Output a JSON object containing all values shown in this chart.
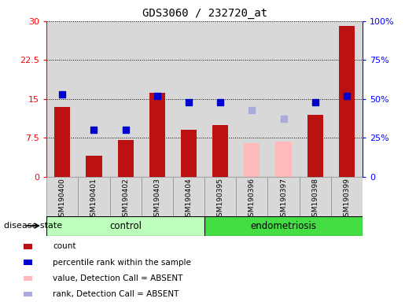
{
  "title": "GDS3060 / 232720_at",
  "samples": [
    "GSM190400",
    "GSM190401",
    "GSM190402",
    "GSM190403",
    "GSM190404",
    "GSM190395",
    "GSM190396",
    "GSM190397",
    "GSM190398",
    "GSM190399"
  ],
  "count_values": [
    13.5,
    4.0,
    7.0,
    16.2,
    9.0,
    10.0,
    null,
    null,
    12.0,
    29.0
  ],
  "count_absent": [
    null,
    null,
    null,
    null,
    null,
    null,
    6.5,
    6.8,
    null,
    null
  ],
  "rank_values": [
    53,
    30,
    30,
    52,
    48,
    48,
    null,
    null,
    48,
    52
  ],
  "rank_absent": [
    null,
    null,
    null,
    null,
    null,
    null,
    43,
    37,
    null,
    null
  ],
  "ylim_left": [
    0,
    30
  ],
  "ylim_right": [
    0,
    100
  ],
  "yticks_left": [
    0,
    7.5,
    15.0,
    22.5,
    30
  ],
  "yticks_right": [
    0,
    25,
    50,
    75,
    100
  ],
  "ytick_labels_left": [
    "0",
    "7.5",
    "15",
    "22.5",
    "30"
  ],
  "ytick_labels_right": [
    "0",
    "25%",
    "50%",
    "75%",
    "100%"
  ],
  "bar_color_present": "#bb1111",
  "bar_color_absent": "#ffbbbb",
  "dot_color_present": "#0000cc",
  "dot_color_absent": "#aaaadd",
  "col_bg_color": "#d8d8d8",
  "plot_bg": "#ffffff",
  "ctrl_color": "#bbffbb",
  "endo_color": "#44dd44",
  "legend_items": [
    {
      "label": "count",
      "color": "#bb1111"
    },
    {
      "label": "percentile rank within the sample",
      "color": "#0000cc"
    },
    {
      "label": "value, Detection Call = ABSENT",
      "color": "#ffbbbb"
    },
    {
      "label": "rank, Detection Call = ABSENT",
      "color": "#aaaadd"
    }
  ]
}
